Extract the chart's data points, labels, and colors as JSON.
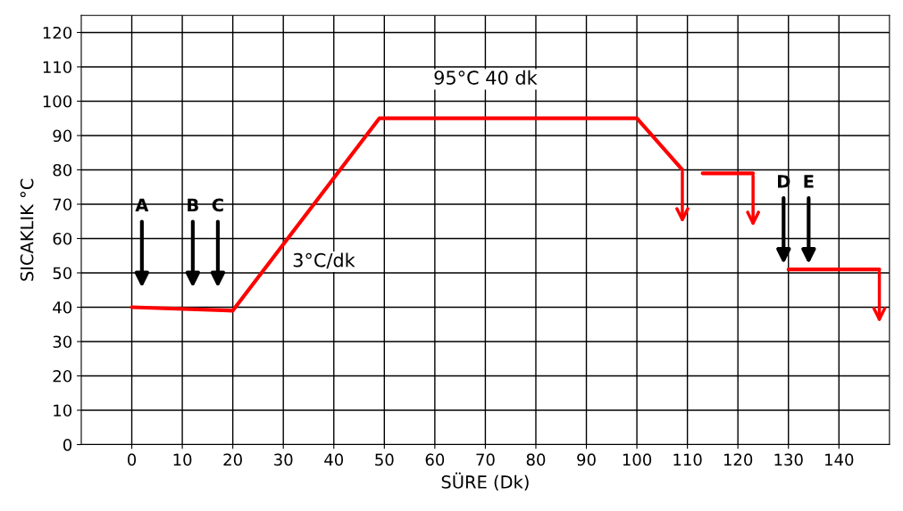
{
  "chart_data": {
    "type": "line",
    "xlabel": "SÜRE (Dk)",
    "ylabel": "SICAKLIK °C",
    "x": [
      0,
      20,
      49,
      100,
      109,
      111,
      113,
      123,
      126,
      130,
      148
    ],
    "series": [
      {
        "color": "#ff0000",
        "values": [
          40,
          39,
          95,
          95,
          80,
          null,
          79,
          79,
          null,
          51,
          51
        ]
      }
    ],
    "xlim": [
      -10,
      150
    ],
    "xticks": [
      0,
      10,
      20,
      30,
      40,
      50,
      60,
      70,
      80,
      90,
      100,
      110,
      120,
      130,
      140
    ],
    "ylim": [
      0,
      125
    ],
    "yticks": [
      0,
      10,
      20,
      30,
      40,
      50,
      60,
      70,
      80,
      90,
      100,
      110,
      120
    ],
    "grid": true,
    "marker": "none",
    "line_style": "solid",
    "annotations": [
      "95°C 40 dk",
      "3°C/dk",
      "A",
      "B",
      "C",
      "D",
      "E"
    ]
  }
}
